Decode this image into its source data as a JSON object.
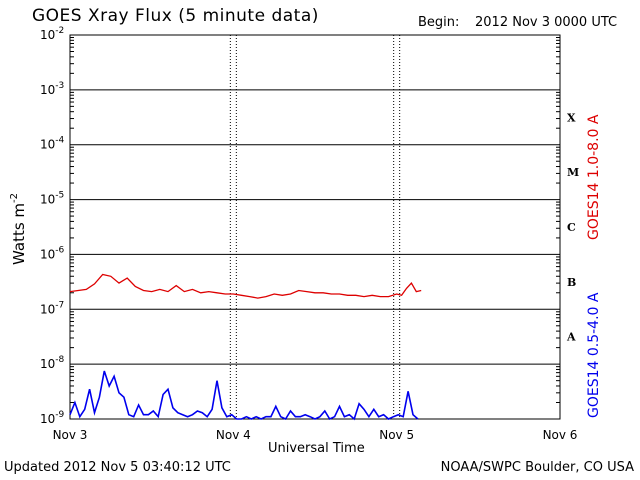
{
  "header": {
    "title": "GOES Xray Flux (5 minute data)",
    "begin_label": "Begin:",
    "begin_value": "2012 Nov 3 0000 UTC"
  },
  "footer": {
    "updated": "Updated 2012 Nov  5 03:40:12 UTC",
    "credit": "NOAA/SWPC Boulder, CO USA"
  },
  "colors": {
    "long_channel": "#dd0000",
    "short_channel": "#0000ee",
    "axes": "#000000"
  },
  "chart_data": {
    "type": "line",
    "title": "GOES Xray Flux (5 minute data)",
    "xlabel": "Universal Time",
    "ylabel": "Watts m",
    "ylabel_sup": "-2",
    "y_scale": "log",
    "ylim": [
      1e-09,
      0.01
    ],
    "xlim": [
      "Nov 3",
      "Nov 6"
    ],
    "x_ticks": [
      "Nov 3",
      "Nov 4",
      "Nov 5",
      "Nov 6"
    ],
    "y_ticks": [
      {
        "base": "10",
        "exp": "-2",
        "value": 0.01
      },
      {
        "base": "10",
        "exp": "-3",
        "value": 0.001
      },
      {
        "base": "10",
        "exp": "-4",
        "value": 0.0001
      },
      {
        "base": "10",
        "exp": "-5",
        "value": 1e-05
      },
      {
        "base": "10",
        "exp": "-6",
        "value": 1e-06
      },
      {
        "base": "10",
        "exp": "-7",
        "value": 1e-07
      },
      {
        "base": "10",
        "exp": "-8",
        "value": 1e-08
      },
      {
        "base": "10",
        "exp": "-9",
        "value": 1e-09
      }
    ],
    "flare_classes": [
      {
        "label": "X",
        "lower": 0.0001
      },
      {
        "label": "M",
        "lower": 1e-05
      },
      {
        "label": "C",
        "lower": 1e-06
      },
      {
        "label": "B",
        "lower": 1e-07
      },
      {
        "label": "A",
        "lower": 1e-08
      }
    ],
    "series": [
      {
        "name": "GOES14 1.0-8.0 A",
        "color": "#dd0000",
        "x_days": [
          0,
          0.05,
          0.1,
          0.15,
          0.2,
          0.25,
          0.3,
          0.35,
          0.4,
          0.45,
          0.5,
          0.55,
          0.6,
          0.65,
          0.7,
          0.75,
          0.8,
          0.85,
          0.9,
          0.95,
          1.0,
          1.05,
          1.1,
          1.15,
          1.2,
          1.25,
          1.3,
          1.35,
          1.4,
          1.45,
          1.5,
          1.55,
          1.6,
          1.65,
          1.7,
          1.75,
          1.8,
          1.85,
          1.9,
          1.95,
          2.0,
          2.03,
          2.06,
          2.09,
          2.12,
          2.15
        ],
        "values": [
          2.1e-07,
          2.2e-07,
          2.3e-07,
          2.9e-07,
          4.3e-07,
          4e-07,
          3e-07,
          3.7e-07,
          2.6e-07,
          2.2e-07,
          2.1e-07,
          2.3e-07,
          2.1e-07,
          2.7e-07,
          2.1e-07,
          2.3e-07,
          2e-07,
          2.1e-07,
          2e-07,
          1.9e-07,
          1.9e-07,
          1.8e-07,
          1.7e-07,
          1.6e-07,
          1.7e-07,
          1.9e-07,
          1.8e-07,
          1.9e-07,
          2.2e-07,
          2.1e-07,
          2e-07,
          2e-07,
          1.9e-07,
          1.9e-07,
          1.8e-07,
          1.8e-07,
          1.7e-07,
          1.8e-07,
          1.7e-07,
          1.7e-07,
          1.9e-07,
          1.8e-07,
          2.4e-07,
          3e-07,
          2.1e-07,
          2.2e-07
        ]
      },
      {
        "name": "GOES14 0.5-4.0 A",
        "color": "#0000ee",
        "x_days": [
          0,
          0.03,
          0.06,
          0.09,
          0.12,
          0.15,
          0.18,
          0.21,
          0.24,
          0.27,
          0.3,
          0.33,
          0.36,
          0.39,
          0.42,
          0.45,
          0.48,
          0.51,
          0.54,
          0.57,
          0.6,
          0.63,
          0.66,
          0.69,
          0.72,
          0.75,
          0.78,
          0.81,
          0.84,
          0.87,
          0.9,
          0.93,
          0.96,
          0.99,
          1.02,
          1.05,
          1.08,
          1.11,
          1.14,
          1.17,
          1.2,
          1.23,
          1.26,
          1.29,
          1.32,
          1.35,
          1.38,
          1.41,
          1.44,
          1.47,
          1.5,
          1.53,
          1.56,
          1.59,
          1.62,
          1.65,
          1.68,
          1.71,
          1.74,
          1.77,
          1.8,
          1.83,
          1.86,
          1.89,
          1.92,
          1.95,
          1.98,
          2.01,
          2.04,
          2.07,
          2.1,
          2.13
        ],
        "values": [
          1.2e-09,
          2e-09,
          1.1e-09,
          1.5e-09,
          3.5e-09,
          1.3e-09,
          2.5e-09,
          7.5e-09,
          4e-09,
          6e-09,
          3e-09,
          2.5e-09,
          1.2e-09,
          1.1e-09,
          1.8e-09,
          1.2e-09,
          1.2e-09,
          1.4e-09,
          1.1e-09,
          2.8e-09,
          3.5e-09,
          1.6e-09,
          1.3e-09,
          1.2e-09,
          1.1e-09,
          1.2e-09,
          1.4e-09,
          1.3e-09,
          1.1e-09,
          1.5e-09,
          5e-09,
          1.6e-09,
          1.1e-09,
          1.2e-09,
          1e-09,
          1e-09,
          1.1e-09,
          1e-09,
          1.1e-09,
          1e-09,
          1.1e-09,
          1.1e-09,
          1.7e-09,
          1.1e-09,
          1e-09,
          1.4e-09,
          1.1e-09,
          1.1e-09,
          1.2e-09,
          1.1e-09,
          1e-09,
          1.1e-09,
          1.4e-09,
          1e-09,
          1.1e-09,
          1.7e-09,
          1.1e-09,
          1.2e-09,
          1e-09,
          1.9e-09,
          1.5e-09,
          1.1e-09,
          1.5e-09,
          1.1e-09,
          1.2e-09,
          1e-09,
          1.1e-09,
          1.2e-09,
          1.1e-09,
          3.2e-09,
          1.2e-09,
          1e-09
        ]
      }
    ]
  }
}
